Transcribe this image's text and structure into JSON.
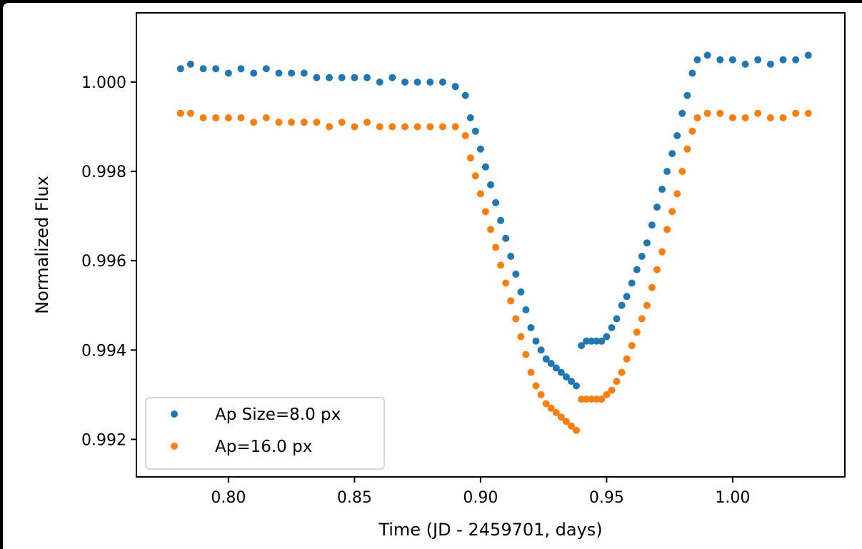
{
  "chart_data": {
    "type": "scatter",
    "title": "",
    "xlabel": "Time (JD - 2459701, days)",
    "ylabel": "Normalized Flux",
    "xlim": [
      0.7635,
      1.0445
    ],
    "ylim": [
      0.99116,
      1.00155
    ],
    "xticks": [
      {
        "value": 0.8,
        "label": "0.80"
      },
      {
        "value": 0.85,
        "label": "0.85"
      },
      {
        "value": 0.9,
        "label": "0.90"
      },
      {
        "value": 0.95,
        "label": "0.95"
      },
      {
        "value": 1.0,
        "label": "1.00"
      }
    ],
    "yticks": [
      {
        "value": 0.992,
        "label": "0.992"
      },
      {
        "value": 0.994,
        "label": "0.994"
      },
      {
        "value": 0.996,
        "label": "0.996"
      },
      {
        "value": 0.998,
        "label": "0.998"
      },
      {
        "value": 1.0,
        "label": "1.000"
      }
    ],
    "grid": false,
    "legend_position": "lower-left",
    "series": [
      {
        "name": "Ap Size=8.0 px",
        "color": "#1f77b4",
        "x": [
          0.781,
          0.785,
          0.79,
          0.795,
          0.8,
          0.805,
          0.81,
          0.815,
          0.82,
          0.825,
          0.83,
          0.835,
          0.84,
          0.845,
          0.85,
          0.855,
          0.86,
          0.865,
          0.87,
          0.875,
          0.88,
          0.885,
          0.89,
          0.894,
          0.896,
          0.898,
          0.9,
          0.902,
          0.904,
          0.906,
          0.908,
          0.91,
          0.912,
          0.914,
          0.916,
          0.918,
          0.92,
          0.922,
          0.924,
          0.926,
          0.928,
          0.93,
          0.932,
          0.934,
          0.936,
          0.938,
          0.94,
          0.942,
          0.944,
          0.946,
          0.948,
          0.95,
          0.952,
          0.954,
          0.956,
          0.958,
          0.96,
          0.962,
          0.964,
          0.966,
          0.968,
          0.97,
          0.972,
          0.974,
          0.976,
          0.978,
          0.98,
          0.982,
          0.984,
          0.986,
          0.99,
          0.995,
          1.0,
          1.005,
          1.01,
          1.015,
          1.02,
          1.025,
          1.03
        ],
        "y": [
          1.0003,
          1.0004,
          1.0003,
          1.0003,
          1.0002,
          1.0003,
          1.0002,
          1.0003,
          1.0002,
          1.0002,
          1.0002,
          1.0001,
          1.0001,
          1.0001,
          1.0001,
          1.0001,
          1.0,
          1.0001,
          1.0,
          1.0,
          1.0,
          1.0,
          0.9999,
          0.9997,
          0.9992,
          0.9989,
          0.9985,
          0.9981,
          0.9977,
          0.9973,
          0.9969,
          0.9965,
          0.9961,
          0.9957,
          0.9953,
          0.9949,
          0.9945,
          0.9942,
          0.994,
          0.9938,
          0.9937,
          0.9936,
          0.9935,
          0.9934,
          0.9933,
          0.9932,
          0.9941,
          0.9942,
          0.9942,
          0.9942,
          0.9942,
          0.9943,
          0.9945,
          0.9947,
          0.995,
          0.9952,
          0.9955,
          0.9958,
          0.9961,
          0.9964,
          0.9968,
          0.9972,
          0.9976,
          0.998,
          0.9984,
          0.9988,
          0.9993,
          0.9997,
          1.0002,
          1.0005,
          1.0006,
          1.0005,
          1.0005,
          1.0004,
          1.0005,
          1.0004,
          1.0005,
          1.0005,
          1.0006
        ]
      },
      {
        "name": "Ap=16.0 px",
        "color": "#ff7f0e",
        "x": [
          0.781,
          0.785,
          0.79,
          0.795,
          0.8,
          0.805,
          0.81,
          0.815,
          0.82,
          0.825,
          0.83,
          0.835,
          0.84,
          0.845,
          0.85,
          0.855,
          0.86,
          0.865,
          0.87,
          0.875,
          0.88,
          0.885,
          0.89,
          0.894,
          0.896,
          0.898,
          0.9,
          0.902,
          0.904,
          0.906,
          0.908,
          0.91,
          0.912,
          0.914,
          0.916,
          0.918,
          0.92,
          0.922,
          0.924,
          0.926,
          0.928,
          0.93,
          0.932,
          0.934,
          0.936,
          0.938,
          0.94,
          0.942,
          0.944,
          0.946,
          0.948,
          0.95,
          0.952,
          0.954,
          0.956,
          0.958,
          0.96,
          0.962,
          0.964,
          0.966,
          0.968,
          0.97,
          0.972,
          0.974,
          0.976,
          0.978,
          0.98,
          0.982,
          0.984,
          0.986,
          0.99,
          0.995,
          1.0,
          1.005,
          1.01,
          1.015,
          1.02,
          1.025,
          1.03
        ],
        "y": [
          0.9993,
          0.9993,
          0.9992,
          0.9992,
          0.9992,
          0.9992,
          0.9991,
          0.9992,
          0.9991,
          0.9991,
          0.9991,
          0.9991,
          0.999,
          0.9991,
          0.999,
          0.9991,
          0.999,
          0.999,
          0.999,
          0.999,
          0.999,
          0.999,
          0.999,
          0.9988,
          0.9983,
          0.9979,
          0.9975,
          0.9971,
          0.9967,
          0.9963,
          0.9959,
          0.9955,
          0.9951,
          0.9947,
          0.9943,
          0.9939,
          0.9935,
          0.9932,
          0.993,
          0.9928,
          0.9927,
          0.9926,
          0.9925,
          0.9924,
          0.9923,
          0.9922,
          0.9929,
          0.9929,
          0.9929,
          0.9929,
          0.9929,
          0.993,
          0.9931,
          0.9933,
          0.9935,
          0.9938,
          0.9941,
          0.9944,
          0.9947,
          0.995,
          0.9954,
          0.9958,
          0.9962,
          0.9967,
          0.9971,
          0.9975,
          0.998,
          0.9985,
          0.9989,
          0.9992,
          0.9993,
          0.9993,
          0.9992,
          0.9992,
          0.9993,
          0.9992,
          0.9992,
          0.9993,
          0.9993
        ]
      }
    ],
    "annotations": []
  }
}
